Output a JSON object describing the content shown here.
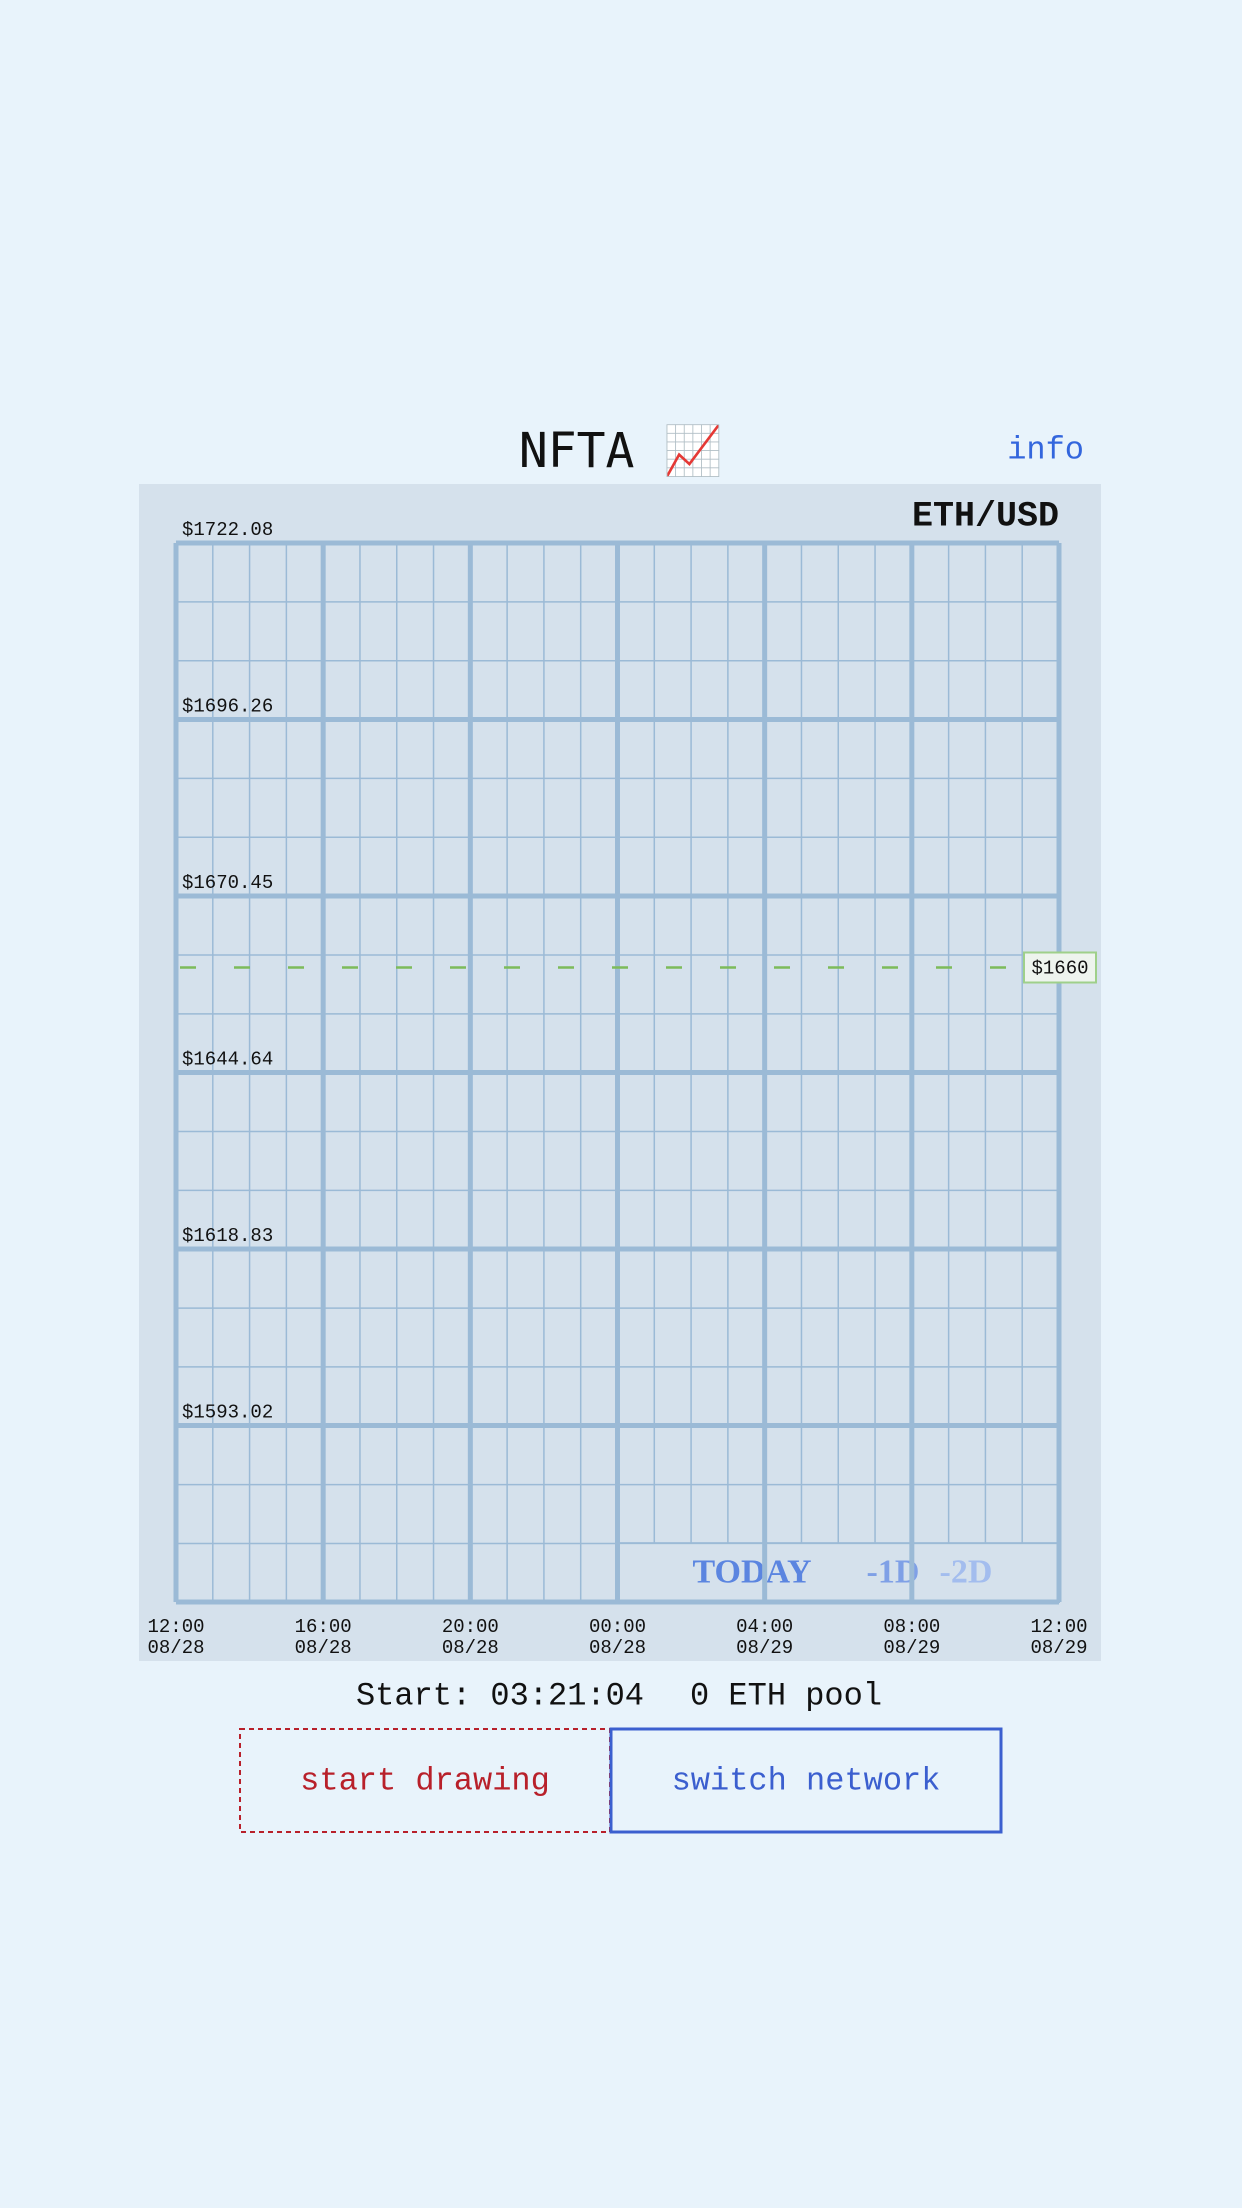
{
  "header": {
    "title": "NFTA 📈",
    "info": "info"
  },
  "chart": {
    "pair": "ETH/USD",
    "ylim": [
      1567.21,
      1722.08
    ],
    "yticks": [
      {
        "value": 1722.08,
        "label": "$1722.08"
      },
      {
        "value": 1696.26,
        "label": "$1696.26"
      },
      {
        "value": 1670.45,
        "label": "$1670.45"
      },
      {
        "value": 1644.64,
        "label": "$1644.64"
      },
      {
        "value": 1618.83,
        "label": "$1618.83"
      },
      {
        "value": 1593.02,
        "label": "$1593.02"
      }
    ],
    "current": {
      "value": 1660,
      "label": "$1660"
    },
    "xticks": [
      {
        "time": "12:00",
        "date": "08/28"
      },
      {
        "time": "16:00",
        "date": "08/28"
      },
      {
        "time": "20:00",
        "date": "08/28"
      },
      {
        "time": "00:00",
        "date": "08/28"
      },
      {
        "time": "04:00",
        "date": "08/29"
      },
      {
        "time": "08:00",
        "date": "08/29"
      },
      {
        "time": "12:00",
        "date": "08/29"
      }
    ],
    "ranges": [
      "TODAY",
      "-1D",
      "-2D"
    ]
  },
  "status": {
    "start": "Start: 03:21:04",
    "pool": "0 ETH pool"
  },
  "buttons": {
    "start": "start drawing",
    "network": "switch network"
  }
}
